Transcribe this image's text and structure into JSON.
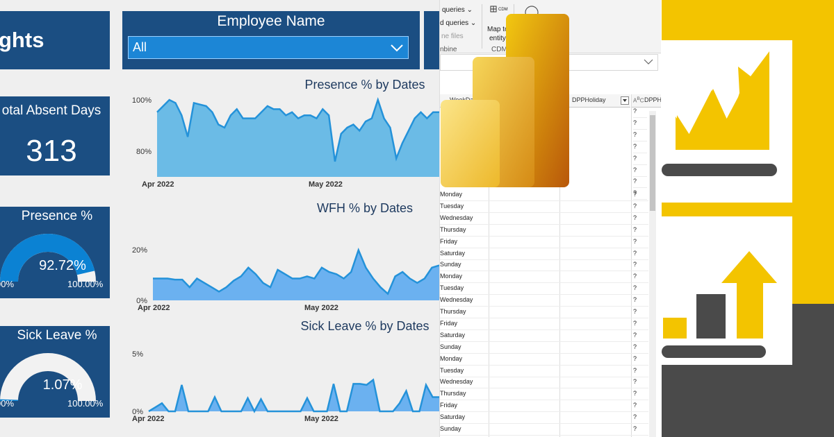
{
  "dashboard": {
    "title_fragment": "ghts",
    "slicer": {
      "title": "Employee Name",
      "value": "All"
    },
    "kpi_absent": {
      "title": "otal Absent Days",
      "value": "313"
    },
    "gauge_presence": {
      "title": "Presence %",
      "value": "92.72%",
      "min": "00%",
      "max": "100.00%",
      "fraction": 0.9272
    },
    "gauge_sick": {
      "title": "Sick Leave %",
      "value": "1.07%",
      "min": "00%",
      "max": "100.00%",
      "fraction": 0.0107
    }
  },
  "chart_data": [
    {
      "type": "area",
      "title": "Presence % by Dates",
      "x_ticks": [
        "Apr 2022",
        "May 2022"
      ],
      "y_ticks": [
        "100%",
        "80%"
      ],
      "ylim": [
        75,
        100
      ],
      "y_unit": "%",
      "series": [
        {
          "values": [
            96,
            98,
            100,
            99,
            95,
            88,
            99,
            98.5,
            98,
            96,
            92,
            91,
            95,
            97,
            94,
            94,
            94,
            96,
            98,
            97,
            97,
            95,
            96,
            94,
            95,
            95,
            94,
            97,
            95,
            80,
            89,
            91,
            92,
            90,
            93,
            94,
            100,
            94,
            91,
            81,
            86,
            90,
            94,
            96,
            94,
            96,
            96
          ]
        }
      ]
    },
    {
      "type": "area",
      "title": "WFH % by Dates",
      "x_ticks": [
        "Apr 2022",
        "May 2022"
      ],
      "y_ticks": [
        "20%",
        "0%"
      ],
      "ylim": [
        0,
        27
      ],
      "y_unit": "%",
      "series": [
        {
          "values": [
            10,
            10,
            10,
            9.5,
            9.5,
            6,
            10,
            8,
            6,
            4,
            6,
            9,
            11,
            15,
            12,
            8,
            6,
            14,
            12,
            10,
            10,
            11,
            10,
            15,
            13,
            12,
            10,
            13,
            23,
            15,
            10,
            6,
            3,
            11,
            13,
            10,
            8,
            10,
            15,
            16
          ]
        }
      ]
    },
    {
      "type": "area",
      "title": "Sick Leave % by Dates",
      "x_ticks": [
        "Apr 2022",
        "May 2022"
      ],
      "y_ticks": [
        "5%",
        "0%"
      ],
      "ylim": [
        0,
        5.8
      ],
      "y_unit": "%",
      "series": [
        {
          "values": [
            0,
            0.4,
            0.8,
            0,
            0,
            2.6,
            0,
            0,
            0,
            0,
            1.4,
            0,
            0,
            0,
            0,
            1.3,
            0,
            1.2,
            0,
            0,
            0,
            0,
            0,
            0,
            1.3,
            0,
            0,
            0,
            2.7,
            0,
            0,
            2.7,
            2.7,
            2.6,
            3.1,
            0,
            0,
            0,
            0.8,
            2.0,
            0,
            0,
            2.6,
            1.4,
            1.4
          ]
        }
      ]
    }
  ],
  "power_query": {
    "ribbon": {
      "queries_top": "queries ⌄",
      "queries_2": "d queries ⌄",
      "files": "ne files",
      "group": "nbine",
      "map_line1": "Map to",
      "map_line2": "entity",
      "cdm_badge": "CDM",
      "cdm_group": "CDM"
    },
    "columns": [
      "WeekDay",
      "DPPHoliday",
      "DPPH"
    ],
    "rows": [
      "Monday",
      "Tuesday",
      "Wednesday",
      "Thursday",
      "Friday",
      "Saturday",
      "Sunday",
      "Monday",
      "Tuesday",
      "Wednesday",
      "Thursday",
      "Friday",
      "Saturday",
      "Sunday",
      "Monday",
      "Tuesday",
      "Wednesday",
      "Thursday",
      "Friday",
      "Saturday",
      "Sunday"
    ],
    "null_mark": "?"
  },
  "colors": {
    "card": "#1b4e82",
    "area_blue": "#6bbbe6",
    "line_blue": "#2492d9",
    "yellow": "#f3c400",
    "dark_gray": "#4a4a4a"
  }
}
